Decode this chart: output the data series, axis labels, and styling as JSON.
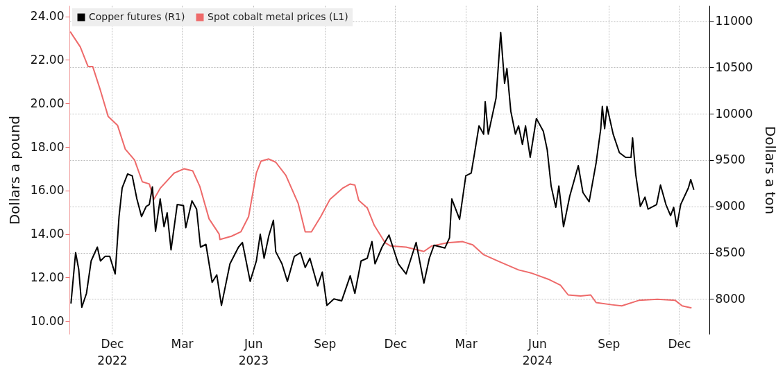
{
  "chart_data": {
    "type": "line",
    "ylabel": "Dollars a pound",
    "y2label": "Dollars a ton",
    "xlim": [
      "2022-10-07",
      "2025-01-09"
    ],
    "xticks": [
      {
        "value": "2022-12-01",
        "label": "Dec\n2022"
      },
      {
        "value": "2023-03-01",
        "label": "Mar"
      },
      {
        "value": "2023-06-01",
        "label": "Jun\n2023"
      },
      {
        "value": "2023-09-01",
        "label": "Sep"
      },
      {
        "value": "2023-12-01",
        "label": "Dec"
      },
      {
        "value": "2024-03-01",
        "label": "Mar"
      },
      {
        "value": "2024-06-01",
        "label": "Jun\n2024"
      },
      {
        "value": "2024-09-01",
        "label": "Sep"
      },
      {
        "value": "2024-12-01",
        "label": "Dec"
      }
    ],
    "ylim": [
      9.4,
      24.5
    ],
    "yticks": [
      {
        "value": 10,
        "label": "10.00"
      },
      {
        "value": 12,
        "label": "12.00"
      },
      {
        "value": 14,
        "label": "14.00"
      },
      {
        "value": 16,
        "label": "16.00"
      },
      {
        "value": 18,
        "label": "18.00"
      },
      {
        "value": 20,
        "label": "20.00"
      },
      {
        "value": 22,
        "label": "22.00"
      },
      {
        "value": 24,
        "label": "24.00"
      }
    ],
    "y2lim": [
      7620,
      11170
    ],
    "y2ticks": [
      8000,
      8500,
      9000,
      9500,
      10000,
      10500,
      11000
    ],
    "grid": true,
    "legend": "top left",
    "line_style": "solid",
    "series": [
      {
        "name": "Copper futures (R1)",
        "color": "#000000",
        "axis": "y2",
        "x": [
          "2022-10-09",
          "2022-10-15",
          "2022-10-19",
          "2022-10-23",
          "2022-10-29",
          "2022-11-04",
          "2022-11-12",
          "2022-11-16",
          "2022-11-22",
          "2022-11-28",
          "2022-12-05",
          "2022-12-10",
          "2022-12-14",
          "2022-12-21",
          "2022-12-27",
          "2023-01-02",
          "2023-01-08",
          "2023-01-14",
          "2023-01-18",
          "2023-01-22",
          "2023-01-26",
          "2023-02-01",
          "2023-02-06",
          "2023-02-10",
          "2023-02-15",
          "2023-02-23",
          "2023-03-03",
          "2023-03-06",
          "2023-03-14",
          "2023-03-20",
          "2023-03-25",
          "2023-04-01",
          "2023-04-09",
          "2023-04-15",
          "2023-04-21",
          "2023-05-02",
          "2023-05-13",
          "2023-05-18",
          "2023-05-28",
          "2023-06-05",
          "2023-06-10",
          "2023-06-15",
          "2023-06-21",
          "2023-06-27",
          "2023-06-30",
          "2023-07-08",
          "2023-07-15",
          "2023-07-24",
          "2023-08-01",
          "2023-08-07",
          "2023-08-13",
          "2023-08-23",
          "2023-08-29",
          "2023-09-04",
          "2023-09-13",
          "2023-09-23",
          "2023-10-04",
          "2023-10-10",
          "2023-10-18",
          "2023-10-26",
          "2023-11-01",
          "2023-11-05",
          "2023-11-14",
          "2023-11-23",
          "2023-12-05",
          "2023-12-15",
          "2023-12-28",
          "2024-01-07",
          "2024-01-14",
          "2024-01-20",
          "2024-02-03",
          "2024-02-09",
          "2024-02-12",
          "2024-02-22",
          "2024-03-01",
          "2024-03-08",
          "2024-03-12",
          "2024-03-18",
          "2024-03-24",
          "2024-03-26",
          "2024-03-30",
          "2024-04-09",
          "2024-04-15",
          "2024-04-20",
          "2024-04-23",
          "2024-04-28",
          "2024-05-04",
          "2024-05-08",
          "2024-05-13",
          "2024-05-17",
          "2024-05-23",
          "2024-05-31",
          "2024-06-09",
          "2024-06-14",
          "2024-06-19",
          "2024-06-25",
          "2024-06-29",
          "2024-07-05",
          "2024-07-13",
          "2024-07-24",
          "2024-07-30",
          "2024-08-07",
          "2024-08-16",
          "2024-08-22",
          "2024-08-24",
          "2024-08-27",
          "2024-08-30",
          "2024-09-07",
          "2024-09-15",
          "2024-09-23",
          "2024-09-30",
          "2024-10-02",
          "2024-10-06",
          "2024-10-12",
          "2024-10-18",
          "2024-10-22",
          "2024-11-02",
          "2024-11-07",
          "2024-11-14",
          "2024-11-20",
          "2024-11-24",
          "2024-11-28",
          "2024-12-03",
          "2024-12-13",
          "2024-12-16",
          "2024-12-20"
        ],
        "values": [
          7950,
          8500,
          8320,
          7910,
          8060,
          8410,
          8560,
          8410,
          8460,
          8460,
          8270,
          8890,
          9200,
          9350,
          9330,
          9080,
          8890,
          9000,
          9020,
          9210,
          8730,
          9080,
          8780,
          8930,
          8530,
          9020,
          9010,
          8770,
          9060,
          8970,
          8560,
          8590,
          8180,
          8260,
          7930,
          8380,
          8560,
          8610,
          8190,
          8410,
          8700,
          8440,
          8680,
          8850,
          8510,
          8380,
          8190,
          8460,
          8500,
          8340,
          8440,
          8140,
          8290,
          7930,
          8000,
          7980,
          8250,
          8060,
          8410,
          8440,
          8620,
          8380,
          8560,
          8690,
          8380,
          8270,
          8610,
          8170,
          8440,
          8580,
          8550,
          8660,
          9080,
          8860,
          9330,
          9360,
          9560,
          9870,
          9780,
          10130,
          9780,
          10170,
          10880,
          10330,
          10490,
          10030,
          9780,
          9870,
          9670,
          9870,
          9530,
          9950,
          9810,
          9610,
          9220,
          8990,
          9220,
          8780,
          9110,
          9440,
          9150,
          9050,
          9470,
          9840,
          10080,
          9840,
          10080,
          9780,
          9580,
          9530,
          9530,
          9740,
          9350,
          9000,
          9100,
          8970,
          9020,
          9230,
          9020,
          8900,
          8990,
          8780,
          9020,
          9200,
          9290,
          9180
        ]
      },
      {
        "name": "Spot cobalt metal prices (L1)",
        "color": "#ee6a6a",
        "axis": "y",
        "x": [
          "2022-10-08",
          "2022-10-21",
          "2022-10-31",
          "2022-11-06",
          "2022-11-16",
          "2022-11-26",
          "2022-12-08",
          "2022-12-18",
          "2022-12-30",
          "2023-01-09",
          "2023-01-18",
          "2023-01-24",
          "2023-02-01",
          "2023-02-19",
          "2023-03-04",
          "2023-03-15",
          "2023-03-24",
          "2023-04-05",
          "2023-04-18",
          "2023-04-19",
          "2023-05-04",
          "2023-05-16",
          "2023-05-26",
          "2023-06-05",
          "2023-06-11",
          "2023-06-21",
          "2023-06-30",
          "2023-07-13",
          "2023-07-29",
          "2023-08-07",
          "2023-08-15",
          "2023-08-27",
          "2023-09-08",
          "2023-09-24",
          "2023-10-04",
          "2023-10-10",
          "2023-10-15",
          "2023-10-26",
          "2023-11-04",
          "2023-11-18",
          "2023-11-25",
          "2023-12-15",
          "2024-01-07",
          "2024-01-17",
          "2024-02-06",
          "2024-02-26",
          "2024-03-10",
          "2024-03-24",
          "2024-04-12",
          "2024-05-08",
          "2024-05-25",
          "2024-06-17",
          "2024-07-01",
          "2024-07-11",
          "2024-07-27",
          "2024-08-09",
          "2024-08-16",
          "2024-09-05",
          "2024-09-18",
          "2024-10-10",
          "2024-11-03",
          "2024-11-26",
          "2024-12-05",
          "2024-12-17"
        ],
        "values": [
          23.3,
          22.6,
          21.7,
          21.7,
          20.6,
          19.4,
          19.0,
          17.9,
          17.4,
          16.4,
          16.3,
          15.6,
          16.1,
          16.8,
          17.0,
          16.9,
          16.2,
          14.7,
          14.0,
          13.75,
          13.9,
          14.1,
          14.8,
          16.8,
          17.35,
          17.45,
          17.3,
          16.7,
          15.4,
          14.1,
          14.1,
          14.8,
          15.6,
          16.1,
          16.3,
          16.25,
          15.55,
          15.2,
          14.4,
          13.6,
          13.45,
          13.4,
          13.2,
          13.45,
          13.6,
          13.65,
          13.5,
          13.05,
          12.75,
          12.35,
          12.2,
          11.9,
          11.65,
          11.2,
          11.15,
          11.2,
          10.85,
          10.75,
          10.7,
          10.95,
          11.0,
          10.95,
          10.7,
          10.6
        ]
      }
    ]
  }
}
